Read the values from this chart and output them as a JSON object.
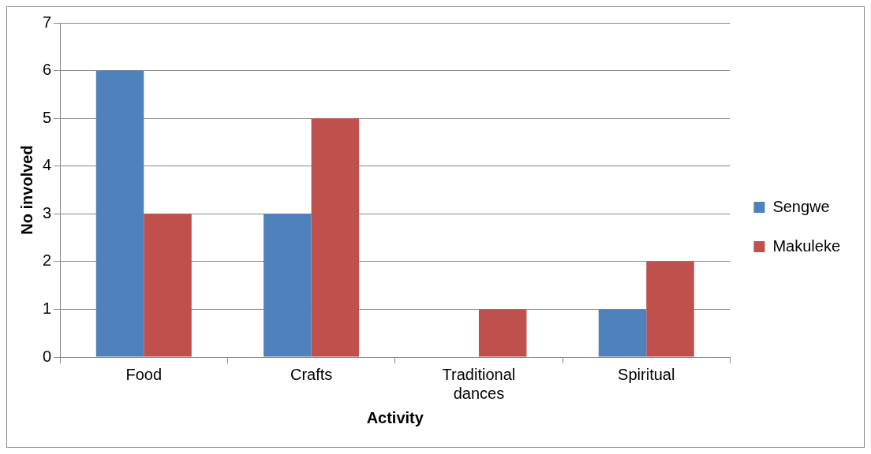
{
  "chart_data": {
    "type": "bar",
    "xlabel": "Activity",
    "ylabel": "No involved",
    "categories": [
      "Food",
      "Crafts",
      "Traditional dances",
      "Spiritual"
    ],
    "series": [
      {
        "name": "Sengwe",
        "color": "#4f81bd",
        "values": [
          6,
          3,
          0,
          1
        ]
      },
      {
        "name": "Makuleke",
        "color": "#c0504d",
        "values": [
          3,
          5,
          1,
          2
        ]
      }
    ],
    "ylim": [
      0,
      7
    ],
    "yticks": [
      0,
      1,
      2,
      3,
      4,
      5,
      6,
      7
    ],
    "grid": "y",
    "legend": "right"
  }
}
